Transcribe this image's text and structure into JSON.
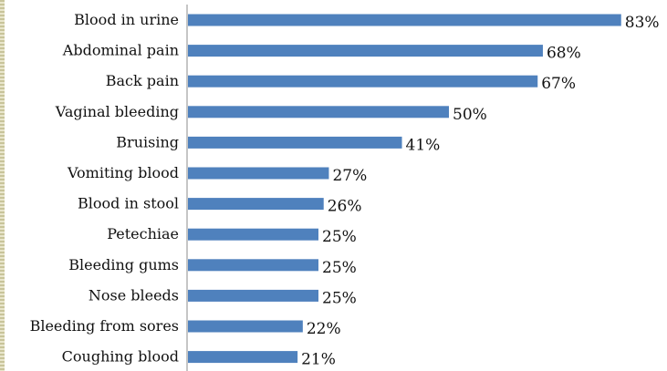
{
  "chart_data": {
    "type": "bar",
    "orientation": "horizontal",
    "categories": [
      "Blood in urine",
      "Abdominal pain",
      "Back pain",
      "Vaginal bleeding",
      "Bruising",
      "Vomiting blood",
      "Blood in stool",
      "Petechiae",
      "Bleeding gums",
      "Nose bleeds",
      "Bleeding from sores",
      "Coughing blood"
    ],
    "values": [
      83,
      68,
      67,
      50,
      41,
      27,
      26,
      25,
      25,
      25,
      22,
      21
    ],
    "value_labels": [
      "83%",
      "68%",
      "67%",
      "50%",
      "41%",
      "27%",
      "26%",
      "25%",
      "25%",
      "25%",
      "22%",
      "21%"
    ],
    "xlim": [
      0,
      100
    ],
    "grid": false,
    "legend": "none",
    "bar_color": "#4f81bd",
    "axis_color": "#8c8c8c"
  }
}
